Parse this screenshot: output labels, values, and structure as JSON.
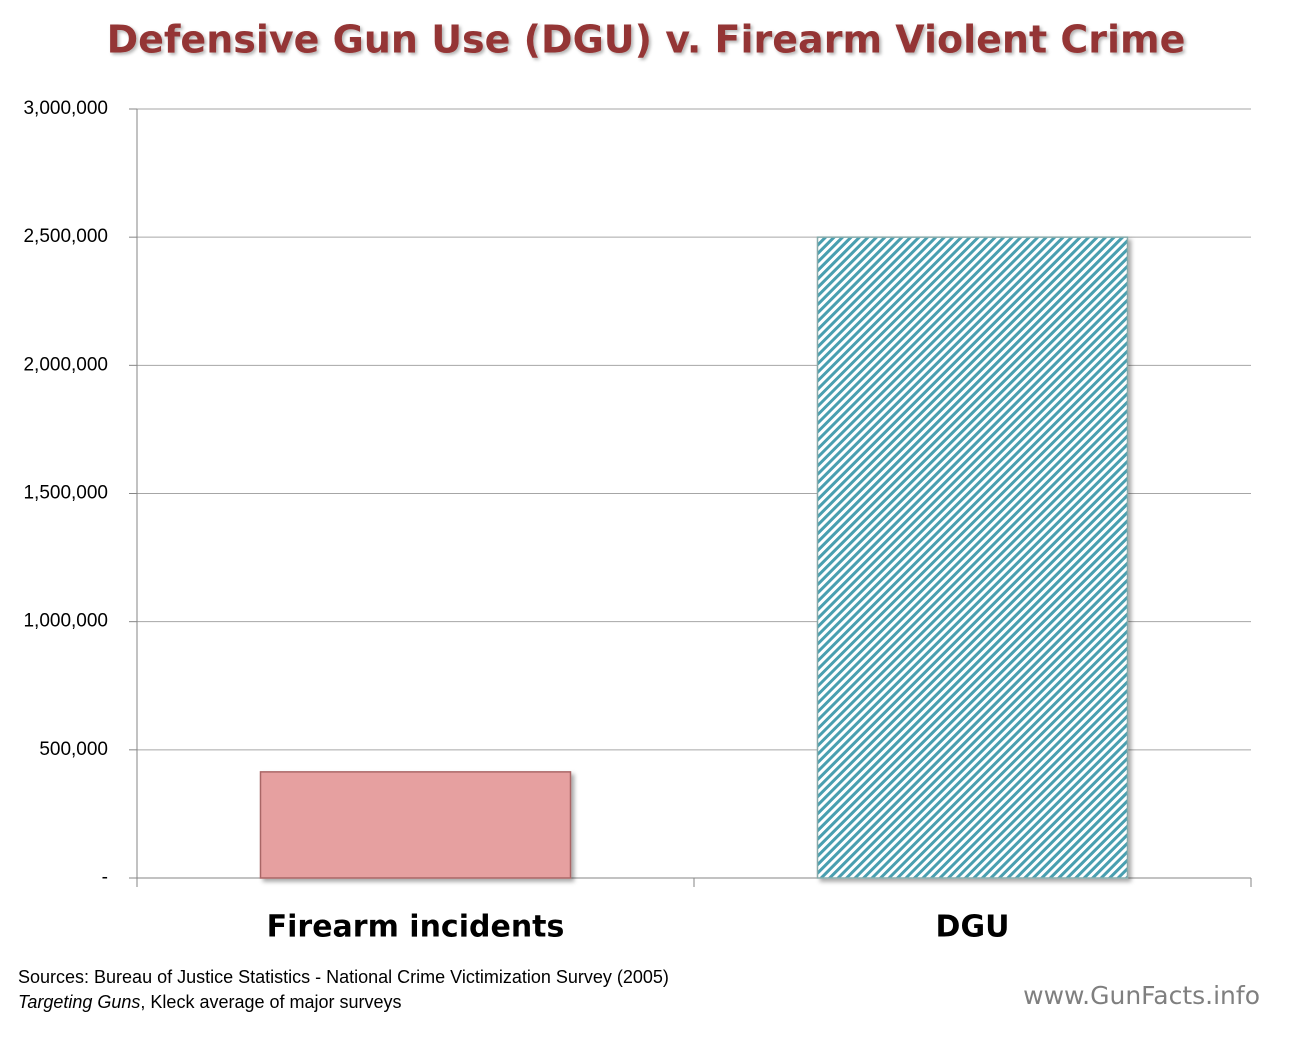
{
  "chart_data": {
    "type": "bar",
    "title": "Defensive Gun Use (DGU) v. Firearm Violent Crime",
    "categories": [
      "Firearm incidents",
      "DGU"
    ],
    "values": [
      414000,
      2500000
    ],
    "colors": [
      "#e6a0a0",
      "#4a9fb0"
    ],
    "hatched": [
      false,
      true
    ],
    "ylim": [
      0,
      3000000
    ],
    "yticks": [
      {
        "value": 0,
        "label": "-"
      },
      {
        "value": 500000,
        "label": "500,000"
      },
      {
        "value": 1000000,
        "label": "1,000,000"
      },
      {
        "value": 1500000,
        "label": "1,500,000"
      },
      {
        "value": 2000000,
        "label": "2,000,000"
      },
      {
        "value": 2500000,
        "label": "2,500,000"
      },
      {
        "value": 3000000,
        "label": "3,000,000"
      }
    ],
    "grid": true,
    "source_line1": "Sources: Bureau of Justice Statistics - National Crime Victimization Survey (2005)",
    "source_line2_italic": "Targeting Guns",
    "source_line2_rest": ", Kleck average of major surveys",
    "watermark": "www.GunFacts.info"
  }
}
